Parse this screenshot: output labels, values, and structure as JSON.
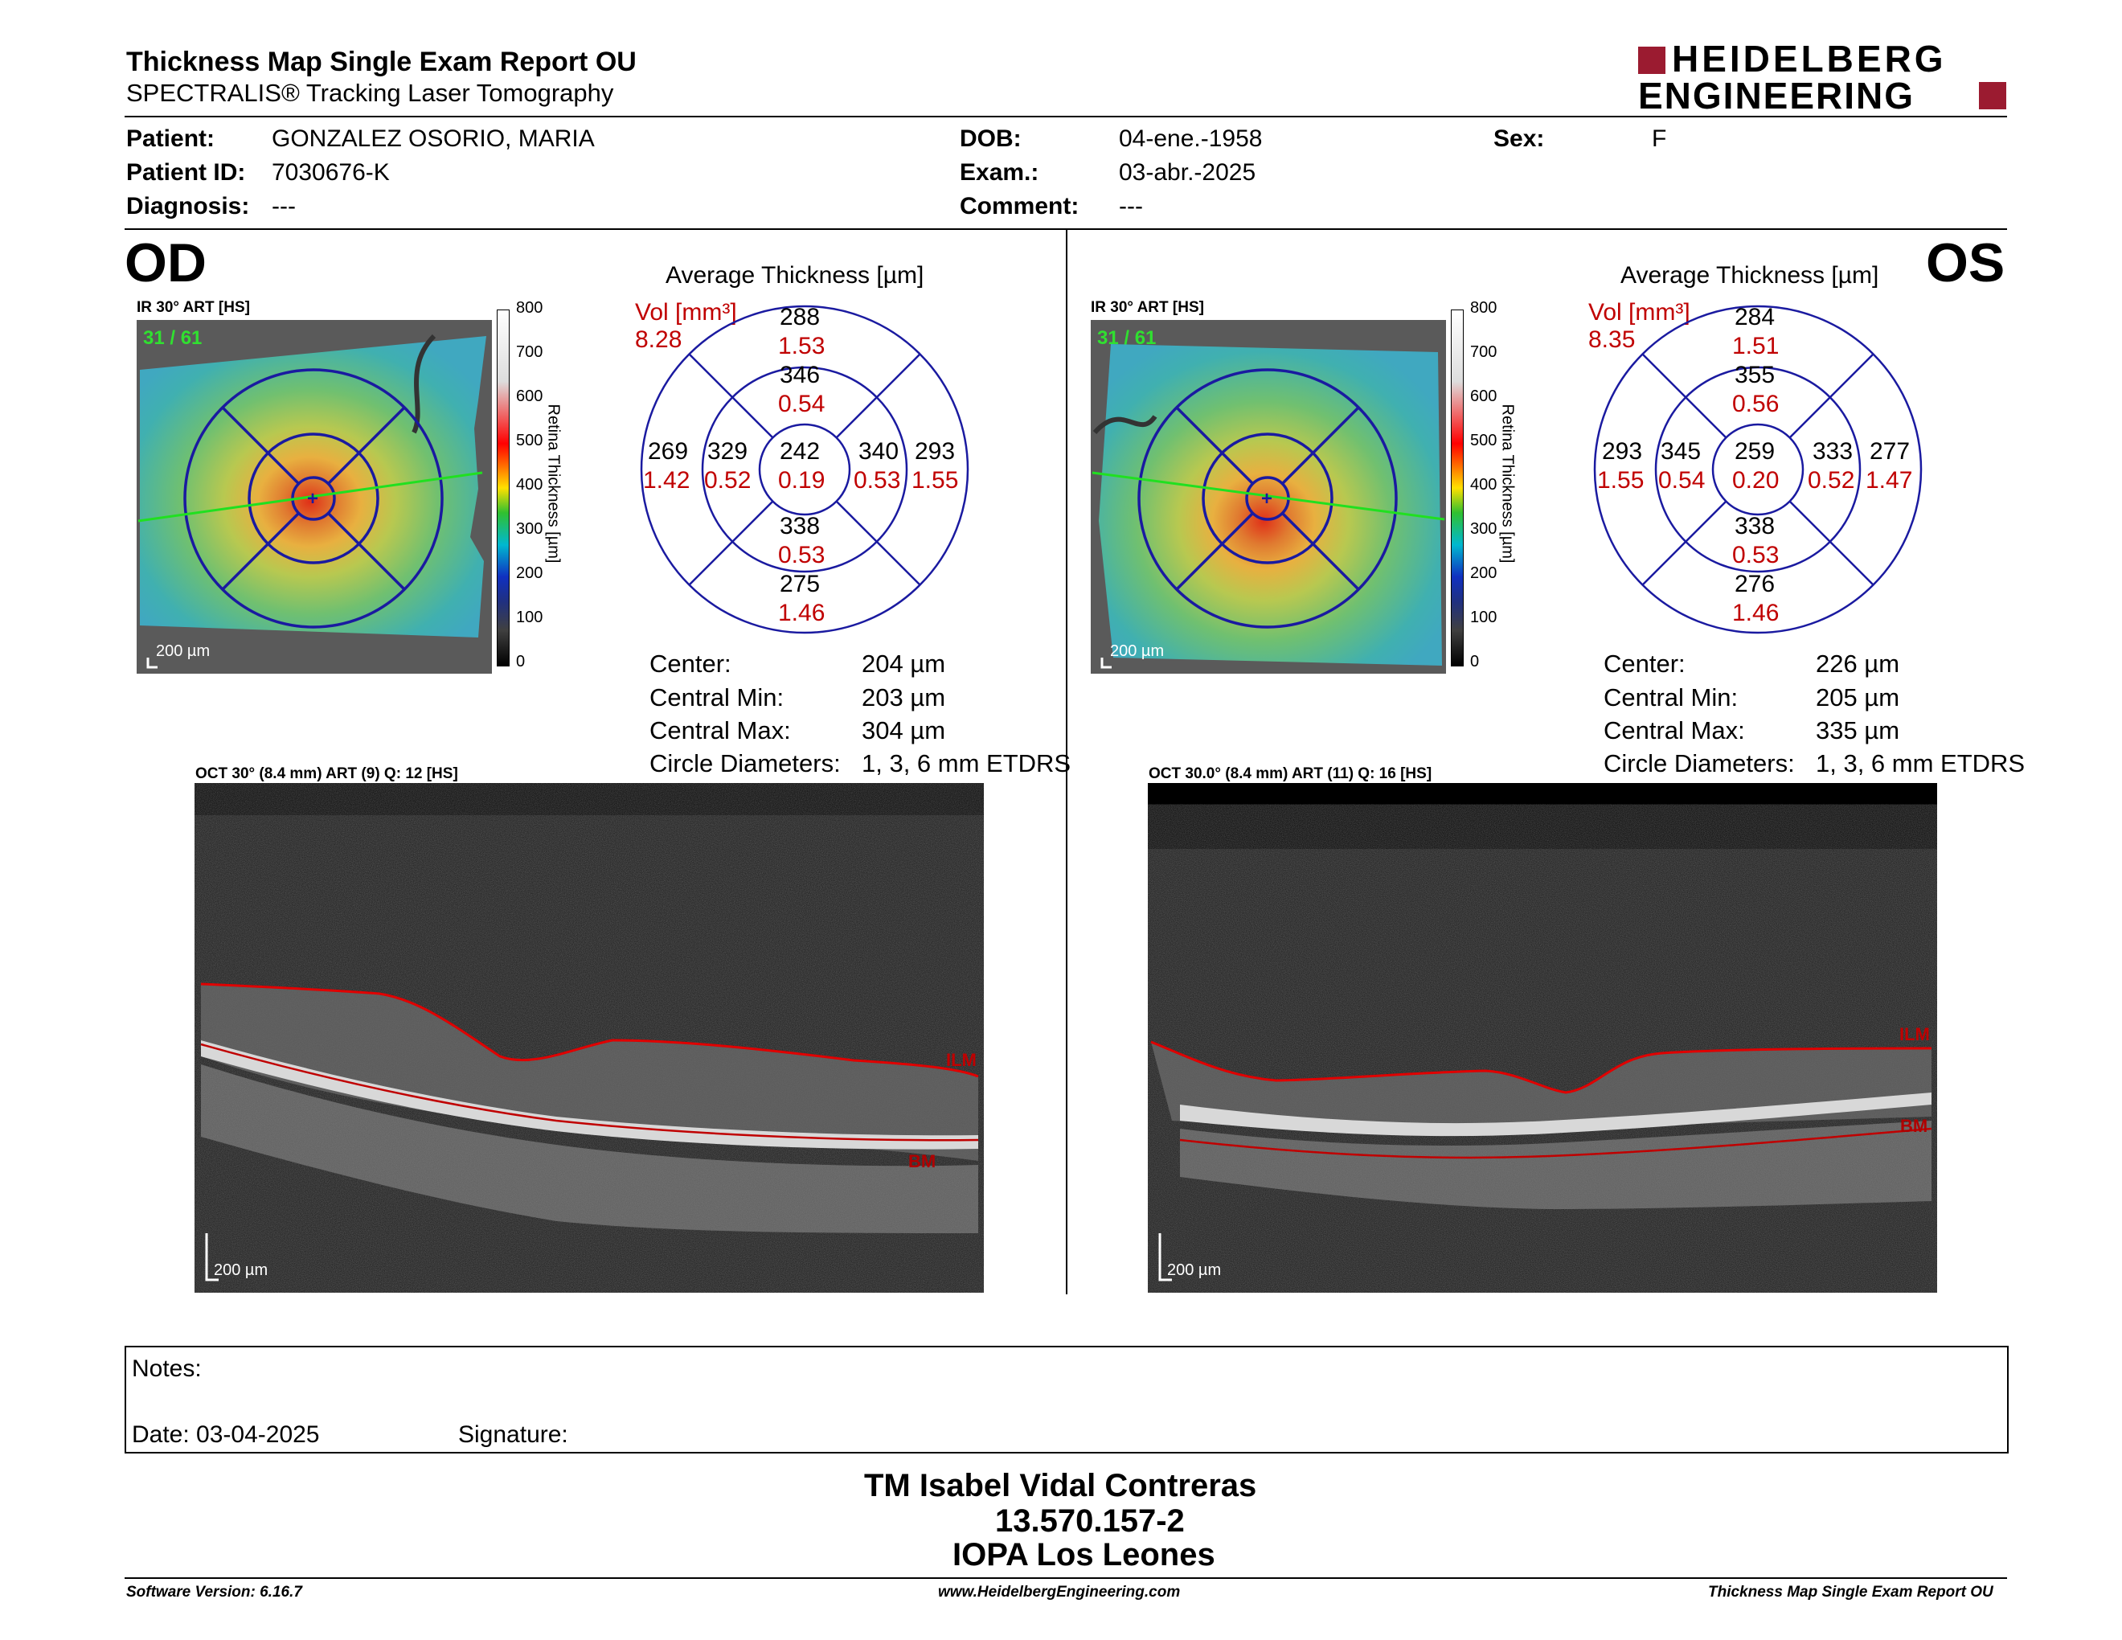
{
  "header": {
    "title": "Thickness Map Single Exam Report OU",
    "subtitle": "SPECTRALIS® Tracking Laser Tomography",
    "logo_line1": "HEIDELBERG",
    "logo_line2": "ENGINEERING",
    "brand_color": "#9b1b30"
  },
  "patient": {
    "patient_label": "Patient:",
    "patient_value": "GONZALEZ OSORIO, MARIA",
    "id_label": "Patient ID:",
    "id_value": "7030676-K",
    "diag_label": "Diagnosis:",
    "diag_value": "---",
    "dob_label": "DOB:",
    "dob_value": "04-ene.-1958",
    "exam_label": "Exam.:",
    "exam_value": "03-abr.-2025",
    "comment_label": "Comment:",
    "comment_value": "---",
    "sex_label": "Sex:",
    "sex_value": "F"
  },
  "od": {
    "eye": "OD",
    "ir_title": "IR 30° ART [HS]",
    "frame": "31 / 61",
    "scale": "200 µm",
    "avg_title": "Average Thickness [µm]",
    "vol_label": "Vol [mm³]",
    "vol_total": "8.28",
    "sectors": {
      "outer_sup": {
        "t": "288",
        "v": "1.53"
      },
      "inner_sup": {
        "t": "346",
        "v": "0.54"
      },
      "outer_temp": {
        "t": "269",
        "v": "1.42"
      },
      "inner_temp": {
        "t": "329",
        "v": "0.52"
      },
      "center": {
        "t": "242",
        "v": "0.19"
      },
      "inner_nas": {
        "t": "340",
        "v": "0.53"
      },
      "outer_nas": {
        "t": "293",
        "v": "1.55"
      },
      "inner_inf": {
        "t": "338",
        "v": "0.53"
      },
      "outer_inf": {
        "t": "275",
        "v": "1.46"
      }
    },
    "stats": {
      "center_label": "Center:",
      "center_value": "204 µm",
      "min_label": "Central Min:",
      "min_value": "203 µm",
      "max_label": "Central Max:",
      "max_value": "304 µm",
      "diam_label": "Circle Diameters:",
      "diam_value": "1, 3, 6 mm ETDRS"
    },
    "oct_title": "OCT 30° (8.4 mm) ART (9) Q: 12 [HS]",
    "ilm": "ILM",
    "bm": "BM",
    "oct_scale": "200 µm"
  },
  "os": {
    "eye": "OS",
    "ir_title": "IR 30° ART [HS]",
    "frame": "31 / 61",
    "scale": "200 µm",
    "avg_title": "Average Thickness [µm]",
    "vol_label": "Vol [mm³]",
    "vol_total": "8.35",
    "sectors": {
      "outer_sup": {
        "t": "284",
        "v": "1.51"
      },
      "inner_sup": {
        "t": "355",
        "v": "0.56"
      },
      "outer_temp": {
        "t": "293",
        "v": "1.55"
      },
      "inner_temp": {
        "t": "345",
        "v": "0.54"
      },
      "center": {
        "t": "259",
        "v": "0.20"
      },
      "inner_nas": {
        "t": "333",
        "v": "0.52"
      },
      "outer_nas": {
        "t": "277",
        "v": "1.47"
      },
      "inner_inf": {
        "t": "338",
        "v": "0.53"
      },
      "outer_inf": {
        "t": "276",
        "v": "1.46"
      }
    },
    "stats": {
      "center_label": "Center:",
      "center_value": "226 µm",
      "min_label": "Central Min:",
      "min_value": "205 µm",
      "max_label": "Central Max:",
      "max_value": "335 µm",
      "diam_label": "Circle Diameters:",
      "diam_value": "1, 3, 6 mm ETDRS"
    },
    "oct_title": "OCT 30.0° (8.4 mm) ART (11) Q: 16 [HS]",
    "ilm": "ILM",
    "bm": "BM",
    "oct_scale": "200 µm"
  },
  "colorbar": {
    "ticks": [
      "800",
      "700",
      "600",
      "500",
      "400",
      "300",
      "200",
      "100",
      "0"
    ],
    "label": "Retina  Thickness [µm]"
  },
  "notes": {
    "notes_label": "Notes:",
    "date_label": "Date: 03-04-2025",
    "signature_label": "Signature:"
  },
  "signature_block": {
    "line1": "TM Isabel Vidal Contreras",
    "line2": "13.570.157-2",
    "line3": "IOPA Los Leones"
  },
  "footer": {
    "left": "Software Version: 6.16.7",
    "center": "www.HeidelbergEngineering.com",
    "right": "Thickness Map Single Exam Report OU"
  }
}
